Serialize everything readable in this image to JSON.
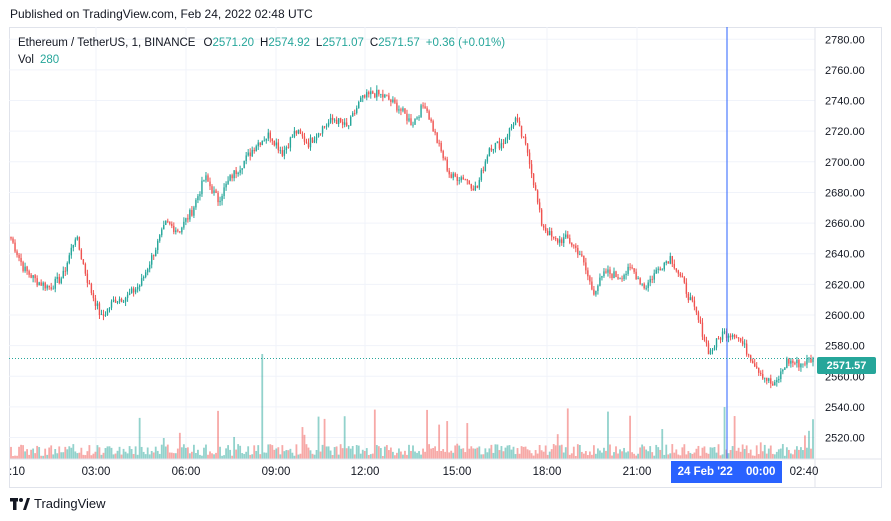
{
  "published_line": "Published on TradingView.com, Feb 24, 2022 02:48 UTC",
  "legend": {
    "symbol": "Ethereum / TetherUS, 1, BINANCE",
    "open_label": "O",
    "open": "2571.20",
    "high_label": "H",
    "high": "2574.92",
    "low_label": "L",
    "low": "2571.07",
    "close_label": "C",
    "close": "2571.57",
    "change": "+0.36 (+0.01%)",
    "vol_label": "Vol",
    "vol": "280"
  },
  "last_price_tag": "2571.57",
  "crosshair_date": "24 Feb '22",
  "crosshair_time": "00:00",
  "brand": "TradingView",
  "colors": {
    "up": "#26a69a",
    "down": "#ef5350",
    "crosshair": "#2962ff",
    "grid": "#f0f3fa"
  },
  "chart_data": {
    "type": "candlestick",
    "timeframe": "1",
    "ylim": [
      2506,
      2788
    ],
    "yticks": [
      2520,
      2540,
      2560,
      2580,
      2600,
      2620,
      2640,
      2660,
      2680,
      2700,
      2720,
      2740,
      2760,
      2780
    ],
    "xticks": [
      ":10",
      "03:00",
      "06:00",
      "09:00",
      "12:00",
      "15:00",
      "18:00",
      "21:00",
      "",
      "02:40"
    ],
    "last_price": 2571.57,
    "series": [
      {
        "name": "close",
        "x": [
          "00:10",
          "00:30",
          "01:00",
          "01:30",
          "02:00",
          "02:30",
          "02:45",
          "03:00",
          "03:30",
          "04:00",
          "04:30",
          "05:00",
          "05:30",
          "06:00",
          "06:30",
          "07:00",
          "07:30",
          "08:00",
          "08:30",
          "09:00",
          "09:30",
          "10:00",
          "10:30",
          "11:00",
          "11:30",
          "12:00",
          "12:30",
          "13:00",
          "13:15",
          "13:30",
          "14:00",
          "14:30",
          "15:00",
          "15:15",
          "15:30",
          "16:00",
          "16:30",
          "17:00",
          "17:30",
          "17:45",
          "18:00",
          "18:15",
          "18:30",
          "19:00",
          "19:30",
          "20:00",
          "20:30",
          "21:00",
          "21:30",
          "21:45",
          "22:00",
          "22:15",
          "22:30",
          "23:00",
          "23:30",
          "00:00",
          "00:15",
          "00:30",
          "01:00",
          "01:30",
          "02:00",
          "02:30",
          "02:40"
        ],
        "values": [
          2650,
          2630,
          2622,
          2618,
          2625,
          2652,
          2620,
          2598,
          2610,
          2612,
          2620,
          2640,
          2660,
          2655,
          2668,
          2690,
          2675,
          2690,
          2700,
          2712,
          2718,
          2706,
          2720,
          2712,
          2722,
          2728,
          2722,
          2740,
          2745,
          2742,
          2735,
          2725,
          2738,
          2712,
          2690,
          2690,
          2682,
          2710,
          2712,
          2728,
          2705,
          2660,
          2648,
          2650,
          2640,
          2615,
          2628,
          2625,
          2630,
          2618,
          2630,
          2638,
          2620,
          2600,
          2575,
          2588,
          2588,
          2575,
          2562,
          2553,
          2570,
          2568,
          2571.57
        ]
      }
    ],
    "volume_max_label": ""
  }
}
